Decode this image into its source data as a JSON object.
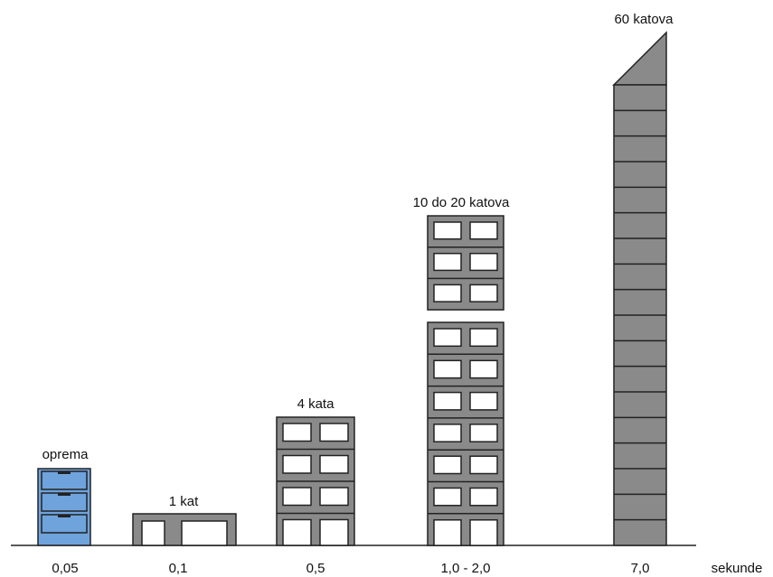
{
  "buildings": [
    {
      "label": "oprema",
      "period": "0,05"
    },
    {
      "label": "1 kat",
      "period": "0,1"
    },
    {
      "label": "4 kata",
      "period": "0,5"
    },
    {
      "label": "10 do 20 katova",
      "period": "1,0 - 2,0"
    },
    {
      "label": "60 katova",
      "period": "7,0"
    }
  ],
  "unit": "sekunde"
}
